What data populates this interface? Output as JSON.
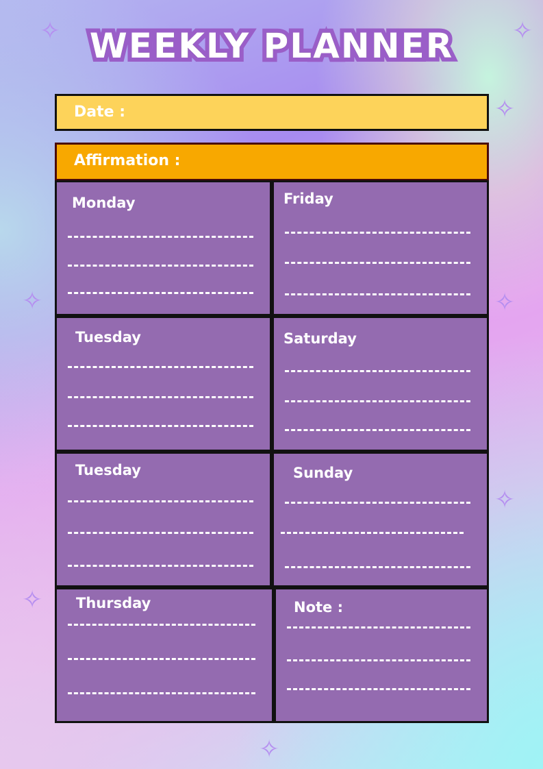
{
  "title": "WEEKLY PLANNER",
  "date_label": "Date :",
  "affirmation_label": "Affirmation :",
  "days": [
    "Monday",
    "Friday",
    "Tuesday",
    "Saturday",
    "Tuesday",
    "Sunday",
    "Thursday"
  ],
  "note_label": "Note :",
  "colors": {
    "date_bar": "#fdd35a",
    "affirmation_bar": "#f8a800",
    "cell": "#946bb0",
    "title_outline": "#9a5ec8"
  }
}
